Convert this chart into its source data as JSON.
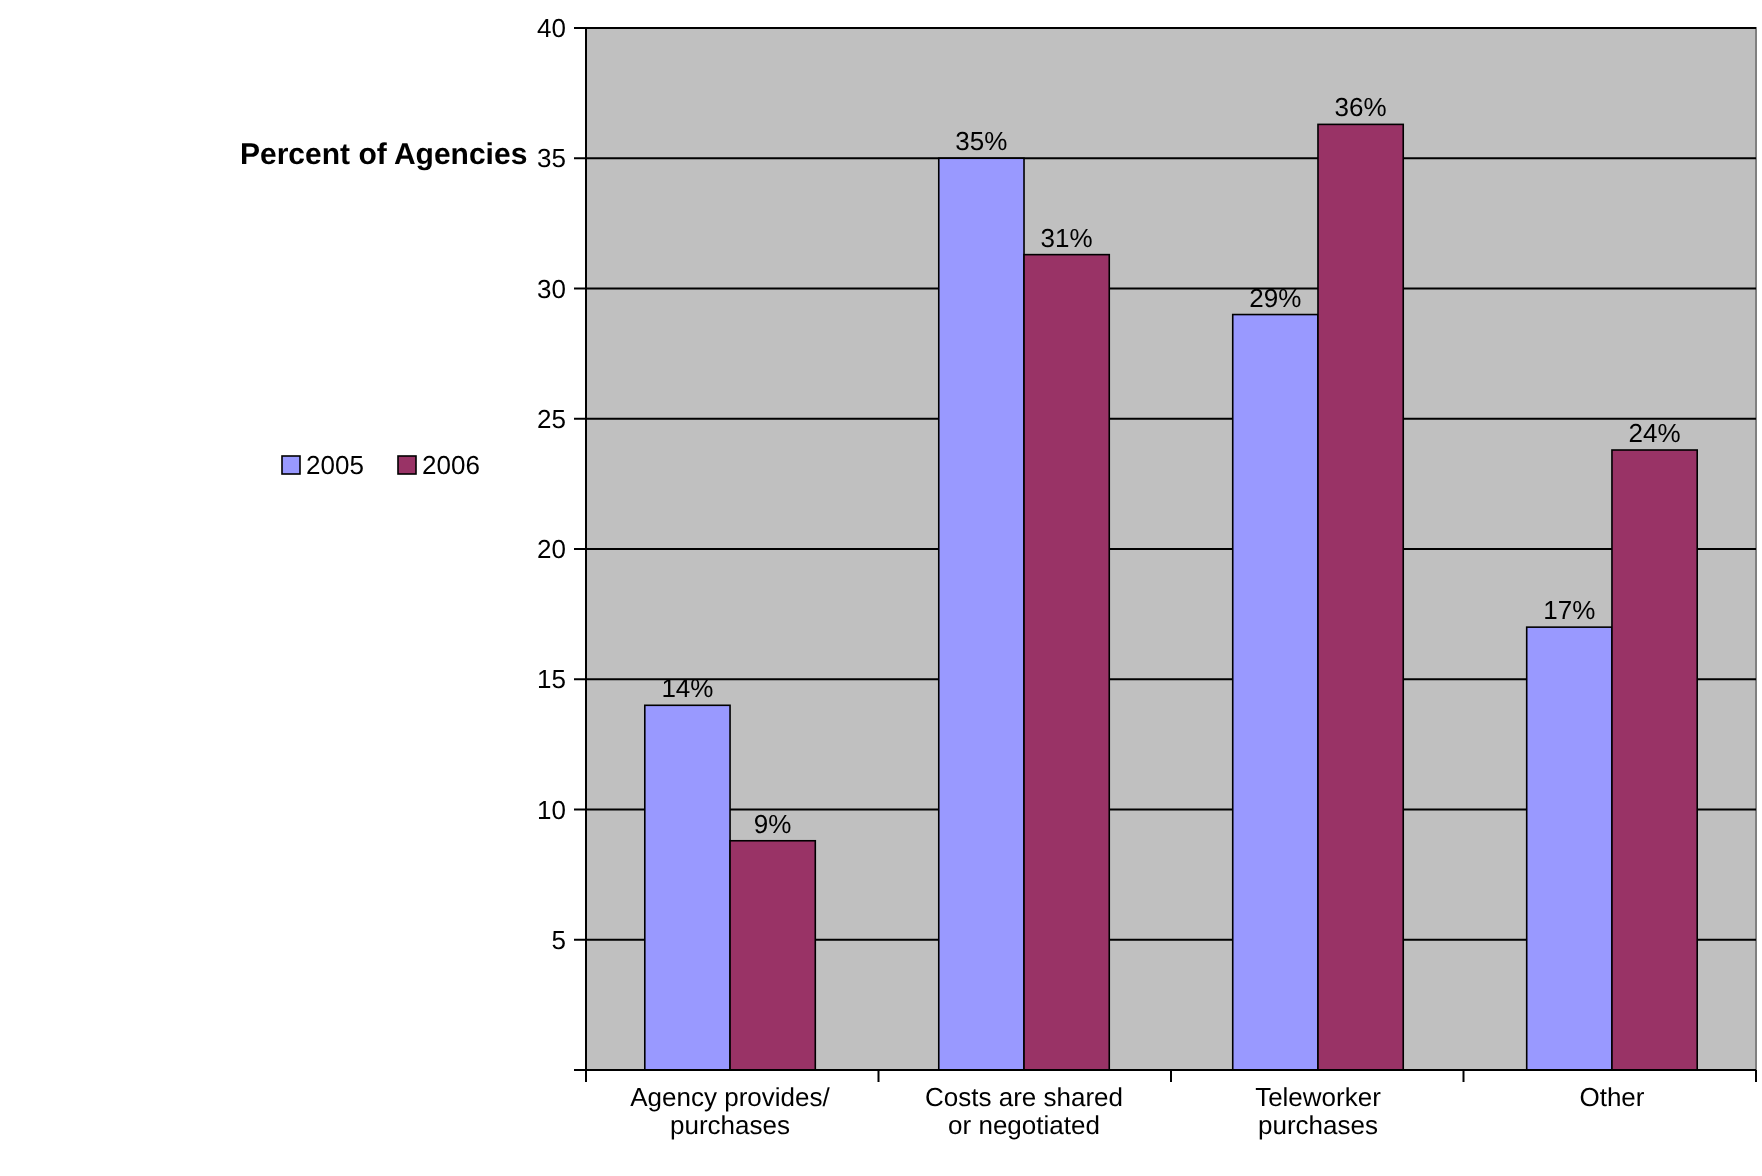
{
  "chart_data": {
    "type": "bar",
    "ylabel": "Percent of Agencies",
    "categories": [
      "Agency provides/ purchases",
      "Costs are shared or negotiated",
      "Teleworker purchases",
      "Other"
    ],
    "series": [
      {
        "name": "2005",
        "color": "#9999ff",
        "values": [
          14,
          35,
          29,
          17
        ],
        "value_labels": [
          "14%",
          "35%",
          "29%",
          "17%"
        ]
      },
      {
        "name": "2006",
        "color": "#993366",
        "values": [
          8.8,
          31.3,
          36.3,
          23.8
        ],
        "value_labels": [
          "9%",
          "31%",
          "36%",
          "24%"
        ]
      }
    ],
    "ylim": [
      0,
      40
    ],
    "yticks": [
      {
        "value": 0,
        "label": null
      },
      5,
      10,
      15,
      20,
      25,
      30,
      35,
      40
    ],
    "grid": "y",
    "legend": "left"
  }
}
